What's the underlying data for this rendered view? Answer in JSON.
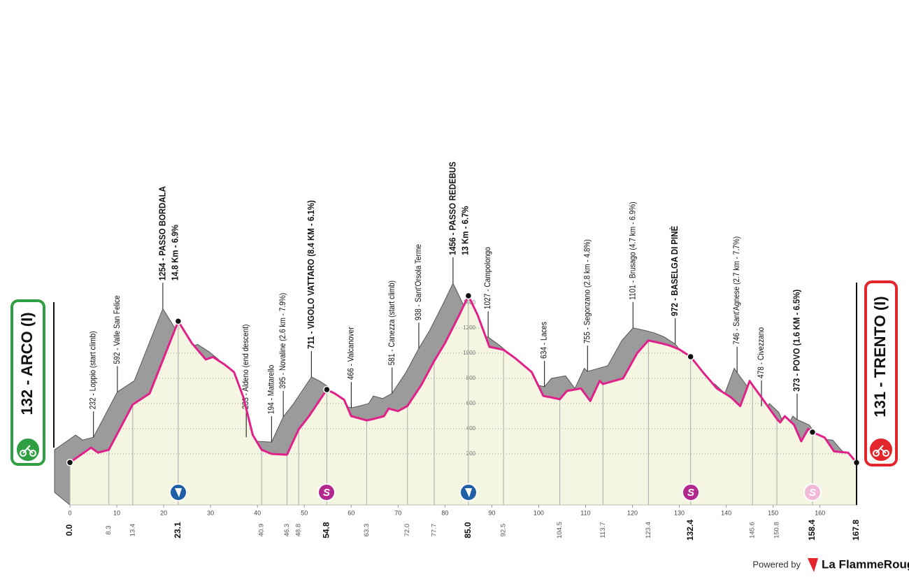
{
  "chart_data": {
    "type": "area",
    "start_label": "132 - ARCO (I)",
    "finish_label": "131 - TRENTO (I)",
    "x": [
      0,
      4.5,
      6,
      8.3,
      13.4,
      17,
      23.1,
      26,
      29,
      30.5,
      33,
      35,
      37,
      39,
      40.9,
      43,
      46.3,
      48.8,
      51,
      54.8,
      56.5,
      58.5,
      60,
      63.3,
      65,
      67,
      68,
      70,
      72,
      75,
      77.7,
      80,
      83,
      85,
      87,
      89.5,
      92.5,
      95,
      98.5,
      101,
      102.5,
      104.5,
      106,
      109,
      111,
      113,
      113.7,
      118,
      121,
      123.4,
      126,
      128,
      130,
      132.4,
      135,
      138,
      141,
      143,
      145,
      145.6,
      147.5,
      150.8,
      151.5,
      152.5,
      154.5,
      156,
      157.5,
      158.4,
      161,
      163,
      166,
      167.8
    ],
    "values": [
      132,
      250,
      210,
      232,
      592,
      680,
      1254,
      1080,
      950,
      970,
      910,
      850,
      650,
      350,
      233,
      200,
      194,
      395,
      500,
      711,
      680,
      630,
      500,
      466,
      480,
      500,
      560,
      540,
      581,
      750,
      938,
      1080,
      1300,
      1456,
      1300,
      1050,
      1027,
      960,
      850,
      660,
      650,
      634,
      700,
      720,
      620,
      780,
      755,
      800,
      1000,
      1101,
      1080,
      1060,
      1030,
      972,
      850,
      720,
      650,
      580,
      780,
      746,
      650,
      478,
      450,
      500,
      430,
      300,
      400,
      373,
      330,
      220,
      210,
      131
    ],
    "color": "#e0218a",
    "fill": "#f4f6e2",
    "shade": "#9b9b9b",
    "xlim": [
      0,
      167.8
    ],
    "ylim": [
      -200,
      1500
    ],
    "xticks": [
      0,
      10,
      20,
      30,
      40,
      50,
      60,
      70,
      80,
      90,
      100,
      110,
      120,
      130,
      140,
      150,
      160
    ],
    "yticks": [
      200,
      400,
      600,
      800,
      1000,
      1200,
      1400
    ],
    "grid": true,
    "waypoints": [
      {
        "km": {
          "value": 0,
          "label": "0.0"
        },
        "bold": true
      },
      {
        "km": 8.3,
        "text": "232 - Loppio (start climb)"
      },
      {
        "km": 13.4,
        "text": "592 - Valle San Felice"
      },
      {
        "km": 23.1,
        "text": "1254 - PASSO BORDALA",
        "subtext": "14.8 Km - 6.9%",
        "bold": true
      },
      {
        "km": 40.9,
        "text": "233 - Aldeno (end descent)"
      },
      {
        "km": 46.3,
        "text": "194 - Mattarello"
      },
      {
        "km": 48.8,
        "text": "395 - Novaline (2.6 km - 7.9%)"
      },
      {
        "km": 54.8,
        "text": "711 - VIGOLO VATTARO (8.4 KM - 6.1%)",
        "bold": true
      },
      {
        "km": 63.3,
        "text": "466 - Valcanover"
      },
      {
        "km": {
          "value": 72,
          "label": "72.0"
        },
        "text": "581 - Canezza (start climb)"
      },
      {
        "km": 77.7,
        "text": "938 - Sant'Orsola Terme"
      },
      {
        "km": {
          "value": 85,
          "label": "85.0"
        },
        "text": "1456 - PASSO REDEBUS",
        "subtext": "13 Km - 6.7%",
        "bold": true
      },
      {
        "km": 92.5,
        "text": "1027 - Campolongo"
      },
      {
        "km": 104.5,
        "text": "634 - Laces"
      },
      {
        "km": 113.7,
        "text": "755 - Segonzano (2.8 km - 4.8%)"
      },
      {
        "km": 123.4,
        "text": "1101 - Brusago (4.7 km - 6.9%)"
      },
      {
        "km": 132.4,
        "text": "972 - BASELGA DI PINÈ",
        "bold": true
      },
      {
        "km": 145.6,
        "text": "746 - Sant'Agnese (2.7 km - 7.7%)"
      },
      {
        "km": 150.8,
        "text": "478 - Civezzano"
      },
      {
        "km": 158.4,
        "text": "373 - POVO (1.6 KM - 6.5%)",
        "bold": true
      },
      {
        "km": 167.8,
        "bold": true
      }
    ]
  },
  "sprint_icon": "S",
  "footer": {
    "powered_by": "Powered by",
    "brand": "La FlammeRouge"
  }
}
